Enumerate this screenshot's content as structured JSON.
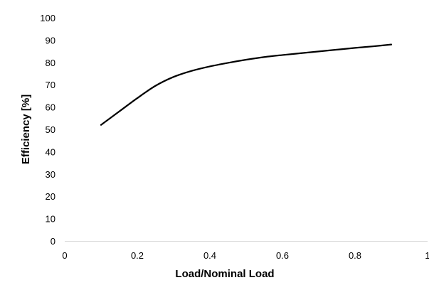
{
  "chart_data": {
    "type": "line",
    "title": "",
    "xlabel": "Load/Nominal Load",
    "ylabel": "Efficiency [%]",
    "xlim": [
      0,
      1
    ],
    "ylim": [
      0,
      100
    ],
    "x_ticks": [
      "0",
      "0.2",
      "0.4",
      "0.6",
      "0.8",
      "1"
    ],
    "y_ticks": [
      "0",
      "10",
      "20",
      "30",
      "40",
      "50",
      "60",
      "70",
      "80",
      "90",
      "100"
    ],
    "grid": false,
    "legend": "none",
    "series": [
      {
        "color": "#000000",
        "x": [
          0.1,
          0.15,
          0.2,
          0.25,
          0.3,
          0.35,
          0.4,
          0.45,
          0.5,
          0.55,
          0.6,
          0.65,
          0.7,
          0.75,
          0.8,
          0.85,
          0.9
        ],
        "y": [
          52,
          58,
          64,
          69.5,
          73.5,
          76.2,
          78.2,
          79.8,
          81.2,
          82.4,
          83.3,
          84.1,
          84.9,
          85.7,
          86.5,
          87.2,
          88
        ]
      }
    ]
  }
}
